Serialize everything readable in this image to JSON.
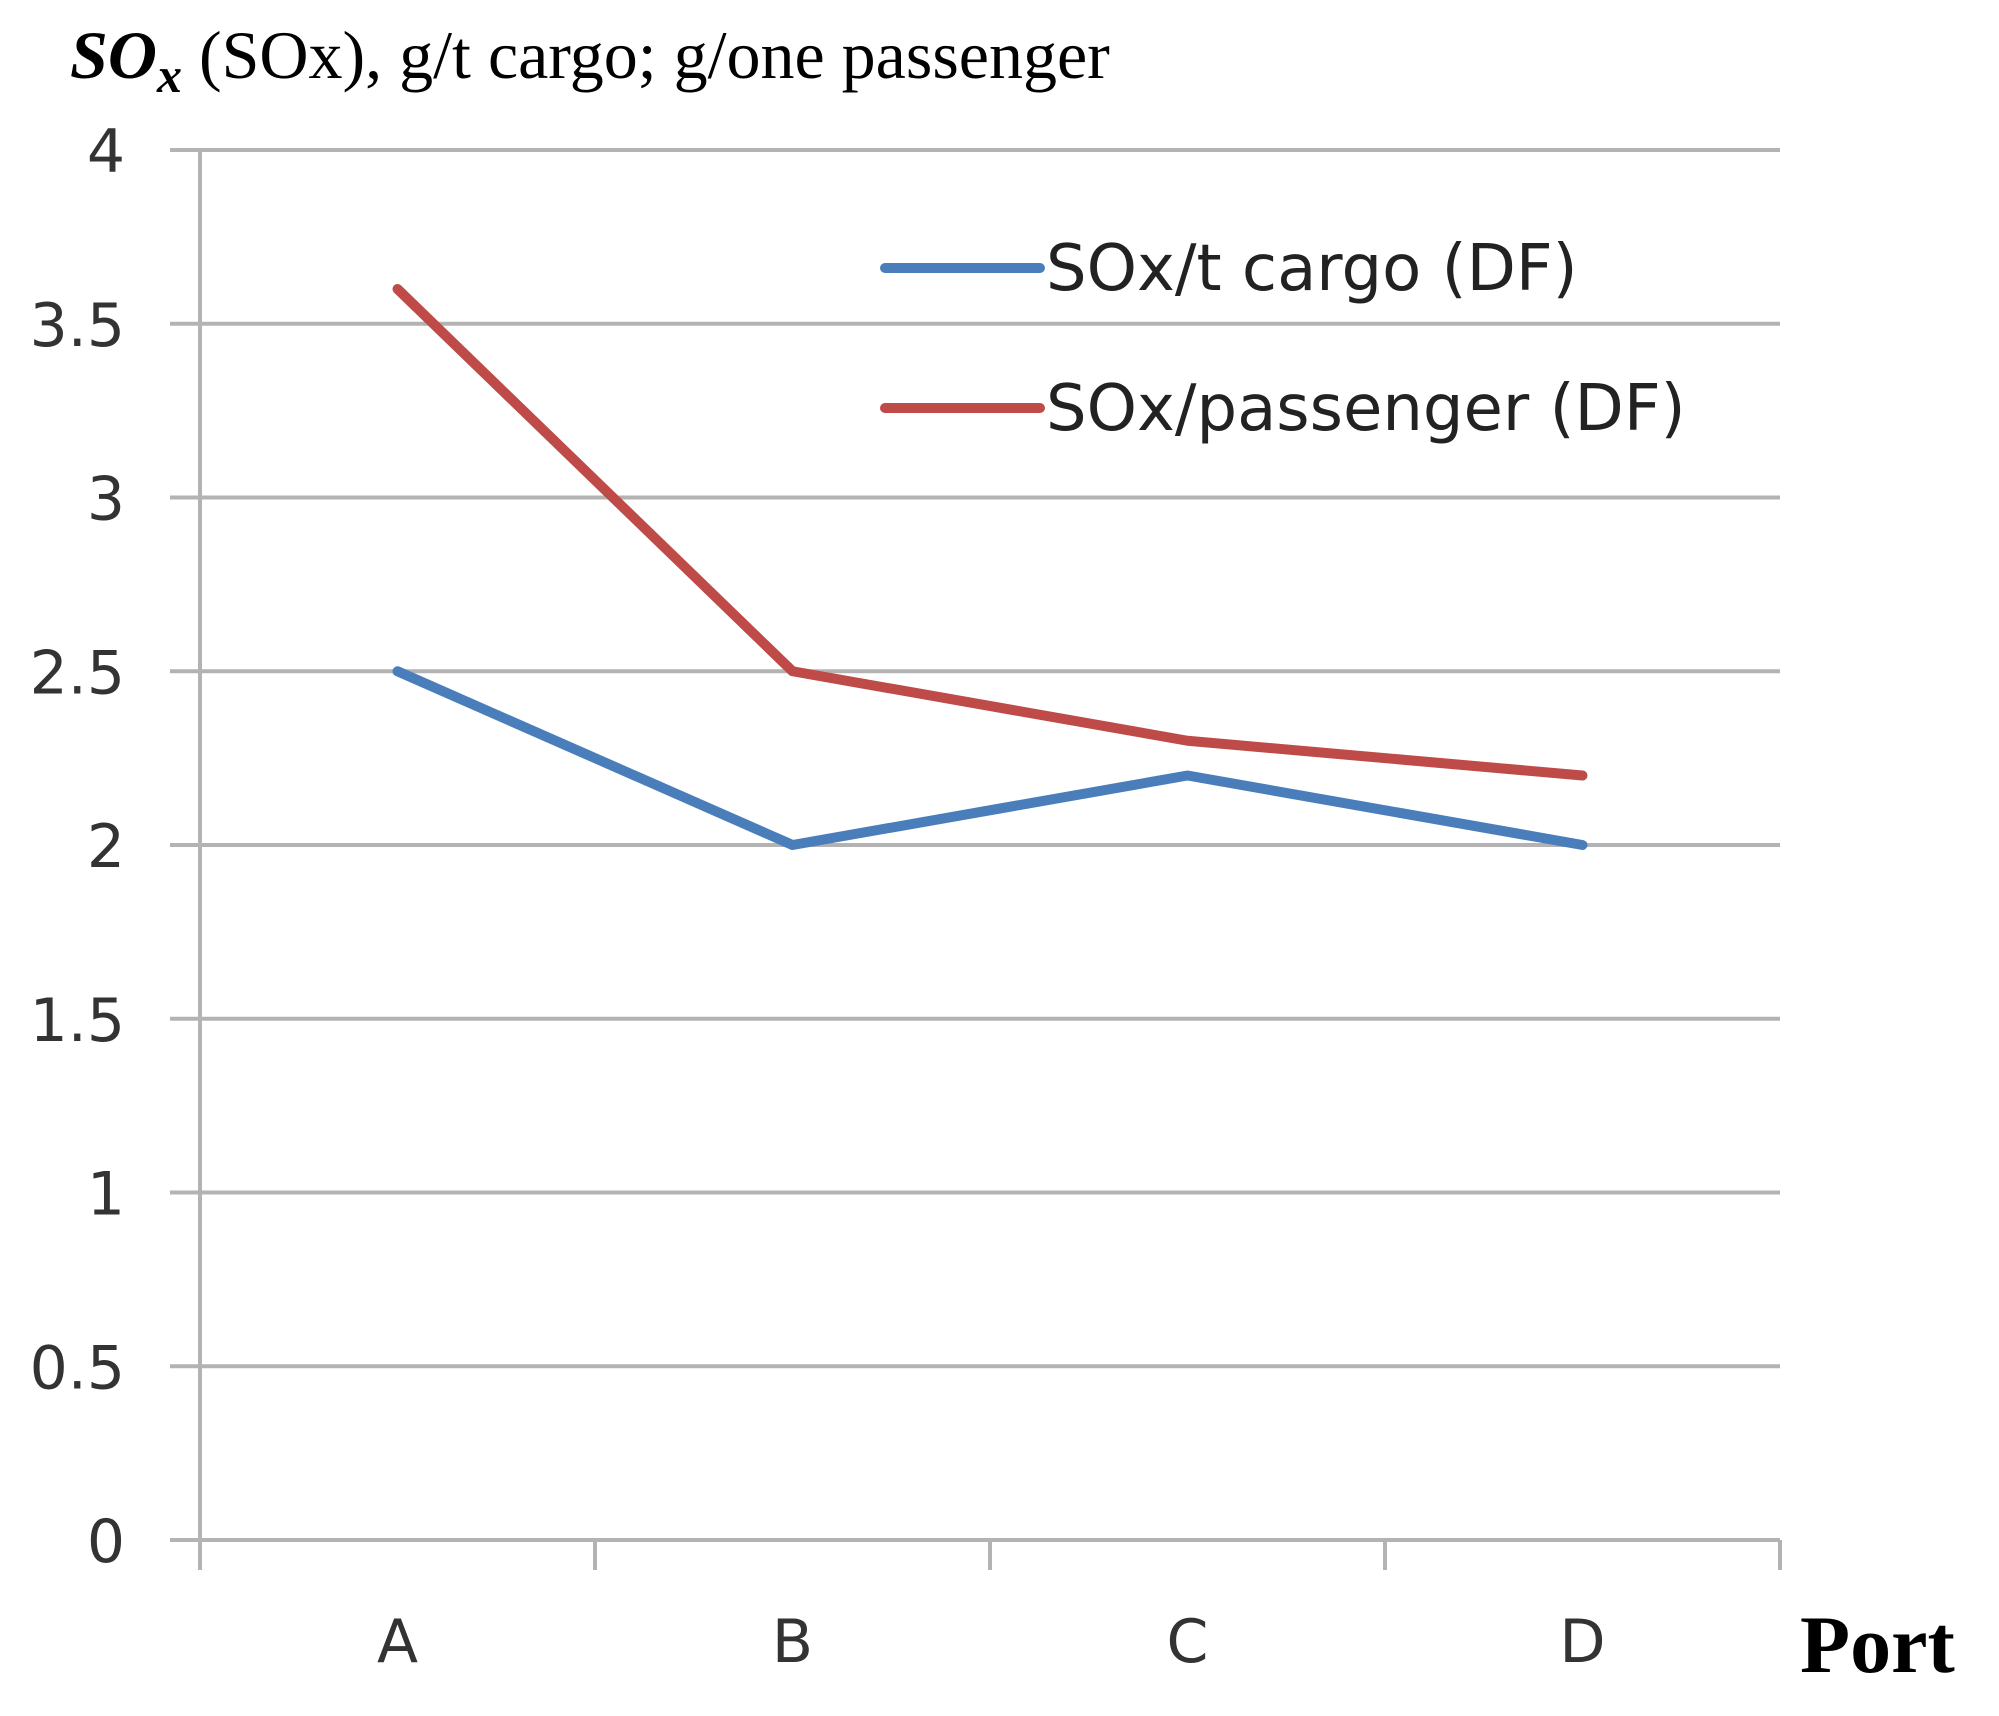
{
  "chart_data": {
    "type": "line",
    "title_symbol": "SO",
    "title_subscript": "x",
    "title_rest": " (SOx), g/t cargo; g/one passenger",
    "xlabel": "Port",
    "categories": [
      "A",
      "B",
      "C",
      "D"
    ],
    "ylim": [
      0,
      4
    ],
    "yticks": [
      0,
      0.5,
      1,
      1.5,
      2,
      2.5,
      3,
      3.5,
      4
    ],
    "ytick_labels": [
      "0",
      "0.5",
      "1",
      "1.5",
      "2",
      "2.5",
      "3",
      "3.5",
      "4"
    ],
    "grid": true,
    "legend_position": "top-right",
    "series": [
      {
        "name": "SOx/t cargo (DF)",
        "color": "#4a7ebb",
        "values": [
          2.5,
          2.0,
          2.2,
          2.0
        ]
      },
      {
        "name": "SOx/passenger (DF)",
        "color": "#be4b48",
        "values": [
          3.6,
          2.5,
          2.3,
          2.2
        ]
      }
    ]
  }
}
